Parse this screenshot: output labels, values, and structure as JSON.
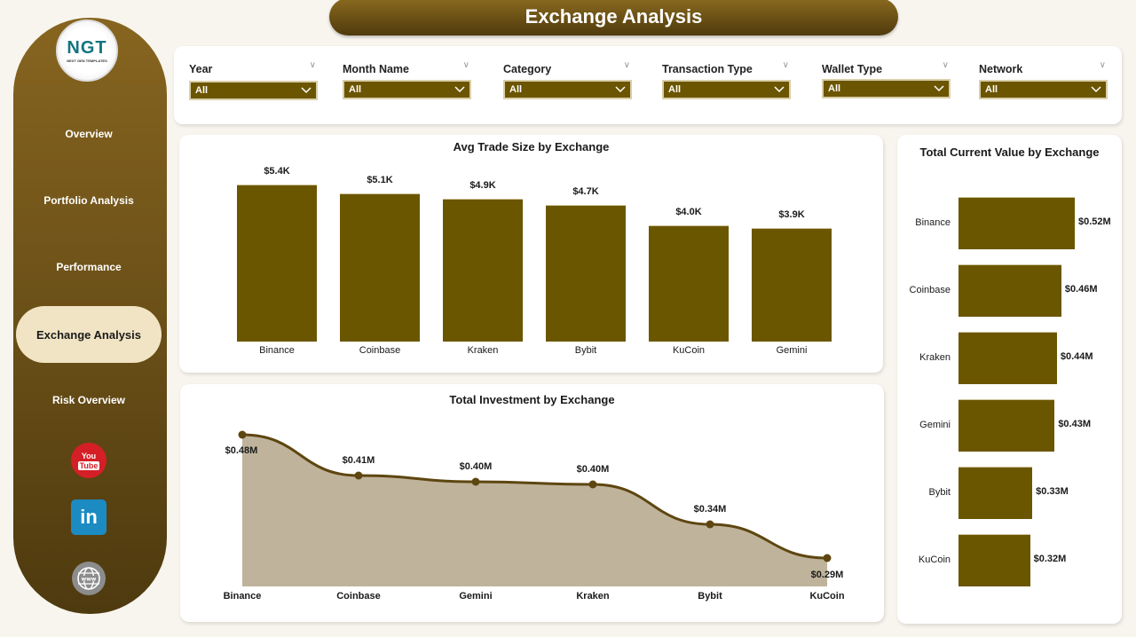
{
  "header": {
    "title": "Exchange Analysis"
  },
  "sidebar": {
    "logo": {
      "text": "NGT",
      "subtext": "NEXT GEN TEMPLATES"
    },
    "items": [
      {
        "label": "Overview"
      },
      {
        "label": "Portfolio Analysis"
      },
      {
        "label": "Performance"
      },
      {
        "label": "Exchange Analysis",
        "active": true
      },
      {
        "label": "Risk Overview"
      }
    ],
    "social": [
      {
        "icon": "youtube-icon",
        "line1": "You",
        "line2": "Tube"
      },
      {
        "icon": "linkedin-icon",
        "text": "in"
      },
      {
        "icon": "globe-icon",
        "text": "www"
      }
    ]
  },
  "filters": [
    {
      "label": "Year",
      "value": "All"
    },
    {
      "label": "Month Name",
      "value": "All"
    },
    {
      "label": "Category",
      "value": "All"
    },
    {
      "label": "Transaction Type",
      "value": "All"
    },
    {
      "label": "Wallet Type",
      "value": "All"
    },
    {
      "label": "Network",
      "value": "All"
    }
  ],
  "colors": {
    "accent": "#6b5600",
    "area_fill": "#bfb39b",
    "line": "#5e4610",
    "sidebar_top": "#876520",
    "sidebar_bottom": "#4e3a0f",
    "active_nav": "#f1e4c4"
  },
  "chart_data": [
    {
      "type": "bar",
      "title": "Avg Trade Size by Exchange",
      "categories": [
        "Binance",
        "Coinbase",
        "Kraken",
        "Bybit",
        "KuCoin",
        "Gemini"
      ],
      "values": [
        5.4,
        5.1,
        4.9,
        4.7,
        4.0,
        3.9
      ],
      "labels": [
        "$5.4K",
        "$5.1K",
        "$4.9K",
        "$4.7K",
        "$4.0K",
        "$3.9K"
      ],
      "unit": "$K",
      "xlabel": "",
      "ylabel": "",
      "grid": false
    },
    {
      "type": "area",
      "title": "Total Investment by Exchange",
      "categories": [
        "Binance",
        "Coinbase",
        "Gemini",
        "Kraken",
        "Bybit",
        "KuCoin"
      ],
      "values": [
        0.48,
        0.41,
        0.4,
        0.4,
        0.34,
        0.29
      ],
      "labels": [
        "$0.48M",
        "$0.41M",
        "$0.40M",
        "$0.40M",
        "$0.34M",
        "$0.29M"
      ],
      "unit": "$M",
      "xlabel": "",
      "ylabel": "",
      "grid": false
    },
    {
      "type": "bar",
      "orientation": "horizontal",
      "title": "Total Current Value by Exchange",
      "categories": [
        "Binance",
        "Coinbase",
        "Kraken",
        "Gemini",
        "Bybit",
        "KuCoin"
      ],
      "values": [
        0.52,
        0.46,
        0.44,
        0.43,
        0.33,
        0.32
      ],
      "labels": [
        "$0.52M",
        "$0.46M",
        "$0.44M",
        "$0.43M",
        "$0.33M",
        "$0.32M"
      ],
      "unit": "$M",
      "xlabel": "",
      "ylabel": "",
      "grid": false
    }
  ]
}
